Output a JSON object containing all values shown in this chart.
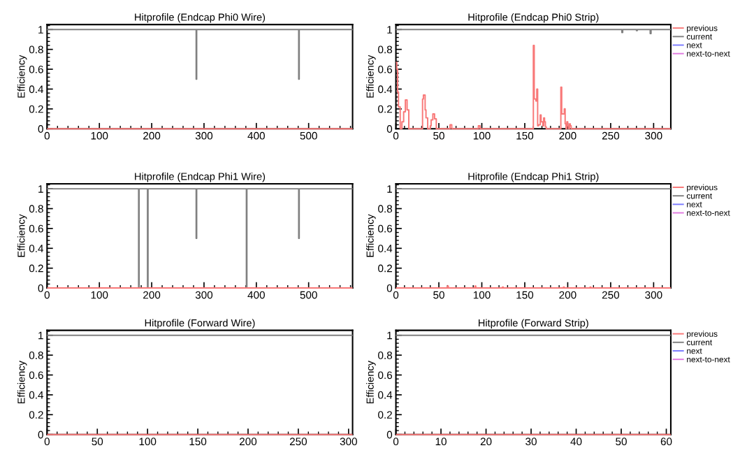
{
  "chart_data": [
    {
      "type": "step",
      "title": "Hitprofile (Endcap Phi0 Wire)",
      "ylabel": "Efficiency",
      "xlim": [
        0,
        584
      ],
      "xticks": [
        0,
        100,
        200,
        300,
        400,
        500
      ],
      "ylim": [
        0,
        1.05
      ],
      "yticks": [
        0,
        0.2,
        0.4,
        0.6,
        0.8,
        1
      ],
      "grid": false,
      "legend": false,
      "series": [
        {
          "color": "#808080",
          "x": [
            0,
            285,
            286,
            481,
            482,
            584
          ],
          "values": [
            1,
            0.5,
            1,
            0.5,
            1,
            1
          ]
        },
        {
          "color": "#f87878",
          "x": [
            0,
            584
          ],
          "values": [
            0,
            0
          ]
        }
      ]
    },
    {
      "type": "step",
      "title": "Hitprofile (Endcap Phi0 Strip)",
      "ylabel": "Efficiency",
      "xlim": [
        0,
        320
      ],
      "xticks": [
        0,
        50,
        100,
        150,
        200,
        250,
        300
      ],
      "ylim": [
        0,
        1.05
      ],
      "yticks": [
        0,
        0.2,
        0.4,
        0.6,
        0.8,
        1
      ],
      "grid": false,
      "legend": "right",
      "series": [
        {
          "name": "previous",
          "color": "#f87878",
          "x": [
            0,
            1,
            2,
            3,
            5,
            7,
            9,
            11,
            13,
            15,
            31,
            32,
            34,
            35,
            37,
            40,
            41,
            43,
            45,
            47,
            63,
            65,
            96,
            98,
            160,
            161,
            163,
            164,
            165,
            166,
            168,
            169,
            171,
            172,
            173,
            174,
            175,
            192,
            193,
            196,
            197,
            198,
            199,
            200,
            201,
            202,
            203,
            204,
            320
          ],
          "values": [
            0.67,
            0.6,
            0.37,
            0.22,
            0,
            0.07,
            0.17,
            0.29,
            0.19,
            0,
            0.3,
            0.34,
            0.19,
            0.11,
            0,
            0.03,
            0.09,
            0.15,
            0.1,
            0,
            0.04,
            0,
            0.03,
            0,
            0.84,
            0.3,
            0.28,
            0.4,
            0.03,
            0.04,
            0.14,
            0.07,
            0.03,
            0.11,
            0.07,
            0.02,
            0,
            0.42,
            0.15,
            0.2,
            0.05,
            0,
            0.07,
            0.03,
            0,
            0.05,
            0.03,
            0,
            0
          ]
        },
        {
          "name": "current",
          "color": "#808080",
          "x": [
            0,
            263,
            264,
            280,
            281,
            296,
            297,
            320
          ],
          "values": [
            1,
            0.97,
            1,
            0.99,
            1,
            0.96,
            1,
            1
          ]
        },
        {
          "name": "next",
          "color": "#7b7bff"
        },
        {
          "name": "next-to-next",
          "color": "#e07be0"
        }
      ]
    },
    {
      "type": "step",
      "title": "Hitprofile (Endcap Phi1 Wire)",
      "ylabel": "Efficiency",
      "xlim": [
        0,
        584
      ],
      "xticks": [
        0,
        100,
        200,
        300,
        400,
        500
      ],
      "ylim": [
        0,
        1.05
      ],
      "yticks": [
        0,
        0.2,
        0.4,
        0.6,
        0.8,
        1
      ],
      "grid": false,
      "legend": false,
      "series": [
        {
          "color": "#808080",
          "x": [
            0,
            175,
            176,
            192,
            193,
            285,
            286,
            381,
            382,
            481,
            482,
            584
          ],
          "values": [
            1,
            0,
            1,
            0,
            1,
            0.5,
            1,
            0,
            1,
            0.5,
            1,
            1
          ]
        },
        {
          "color": "#f87878",
          "x": [
            0,
            584
          ],
          "values": [
            0,
            0
          ]
        }
      ]
    },
    {
      "type": "step",
      "title": "Hitprofile (Endcap Phi1 Strip)",
      "ylabel": "Efficiency",
      "xlim": [
        0,
        320
      ],
      "xticks": [
        0,
        50,
        100,
        150,
        200,
        250,
        300
      ],
      "ylim": [
        0,
        1.05
      ],
      "yticks": [
        0,
        0.2,
        0.4,
        0.6,
        0.8,
        1
      ],
      "grid": false,
      "legend": "right",
      "series": [
        {
          "name": "previous",
          "color": "#f87878",
          "x": [
            0,
            60,
            61,
            92,
            93,
            124,
            125,
            195,
            196,
            226,
            227,
            320
          ],
          "values": [
            0,
            0.02,
            0,
            0.02,
            0,
            0.01,
            0,
            0.01,
            0,
            0.01,
            0,
            0
          ]
        },
        {
          "name": "current",
          "color": "#808080",
          "x": [
            0,
            320
          ],
          "values": [
            1,
            1
          ]
        },
        {
          "name": "next",
          "color": "#7b7bff"
        },
        {
          "name": "next-to-next",
          "color": "#e07be0"
        }
      ]
    },
    {
      "type": "step",
      "title": "Hitprofile (Forward Wire)",
      "ylabel": "Efficiency",
      "xlim": [
        0,
        304
      ],
      "xticks": [
        0,
        50,
        100,
        150,
        200,
        250,
        300
      ],
      "ylim": [
        0,
        1.05
      ],
      "yticks": [
        0,
        0.2,
        0.4,
        0.6,
        0.8,
        1
      ],
      "grid": false,
      "legend": false,
      "series": [
        {
          "color": "#808080",
          "x": [
            0,
            304
          ],
          "values": [
            1,
            1
          ]
        },
        {
          "color": "#f87878",
          "x": [
            0,
            304
          ],
          "values": [
            0,
            0
          ]
        }
      ]
    },
    {
      "type": "step",
      "title": "Hitprofile (Forward Strip)",
      "ylabel": "Efficiency",
      "xlim": [
        0,
        61
      ],
      "xticks": [
        0,
        10,
        20,
        30,
        40,
        50,
        60
      ],
      "ylim": [
        0,
        1.05
      ],
      "yticks": [
        0,
        0.2,
        0.4,
        0.6,
        0.8,
        1
      ],
      "grid": false,
      "legend": "right",
      "series": [
        {
          "name": "previous",
          "color": "#f87878",
          "x": [
            0,
            61
          ],
          "values": [
            0,
            0
          ]
        },
        {
          "name": "current",
          "color": "#808080",
          "x": [
            0,
            61
          ],
          "values": [
            1,
            1
          ]
        },
        {
          "name": "next",
          "color": "#7b7bff"
        },
        {
          "name": "next-to-next",
          "color": "#e07be0"
        }
      ]
    }
  ]
}
